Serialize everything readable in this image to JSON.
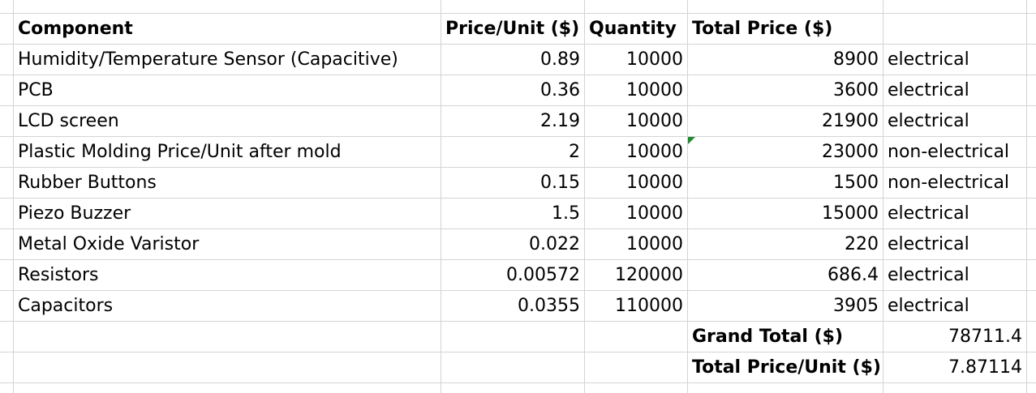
{
  "header": {
    "component": "Component",
    "price_unit": "Price/Unit ($)",
    "quantity": "Quantity",
    "total_price": "Total Price ($)"
  },
  "rows": [
    {
      "component": "Humidity/Temperature Sensor (Capacitive)",
      "price_unit": "0.89",
      "quantity": "10000",
      "total": "8900",
      "category": "electrical"
    },
    {
      "component": "PCB",
      "price_unit": "0.36",
      "quantity": "10000",
      "total": "3600",
      "category": "electrical"
    },
    {
      "component": "LCD screen",
      "price_unit": "2.19",
      "quantity": "10000",
      "total": "21900",
      "category": "electrical"
    },
    {
      "component": "Plastic Molding Price/Unit after mold",
      "price_unit": "2",
      "quantity": "10000",
      "total": "23000",
      "category": "non-electrical"
    },
    {
      "component": "Rubber Buttons",
      "price_unit": "0.15",
      "quantity": "10000",
      "total": "1500",
      "category": "non-electrical"
    },
    {
      "component": "Piezo Buzzer",
      "price_unit": "1.5",
      "quantity": "10000",
      "total": "15000",
      "category": "electrical"
    },
    {
      "component": "Metal Oxide Varistor",
      "price_unit": "0.022",
      "quantity": "10000",
      "total": "220",
      "category": "electrical"
    },
    {
      "component": "Resistors",
      "price_unit": "0.00572",
      "quantity": "120000",
      "total": "686.4",
      "category": "electrical"
    },
    {
      "component": "Capacitors",
      "price_unit": "0.0355",
      "quantity": "110000",
      "total": "3905",
      "category": "electrical"
    }
  ],
  "summary": {
    "grand_total_label": "Grand Total ($)",
    "grand_total_value": "78711.4",
    "per_unit_label": "Total Price/Unit ($)",
    "per_unit_value": "7.87114"
  },
  "colors": {
    "gridline": "#d4d4d4",
    "comment_indicator": "#1c8a2e"
  }
}
